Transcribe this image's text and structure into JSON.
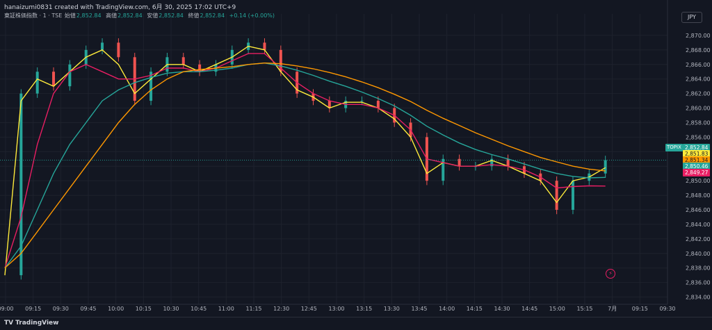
{
  "header": {
    "credit": "hanaizumi0831 created with TradingView.com, 6月 30, 2025 17:02 UTC+9",
    "symbol": "東証株価指数 · 1 · TSE",
    "open_label": "始値",
    "open": "2,852.84",
    "high_label": "高値",
    "high": "2,852.84",
    "low_label": "安値",
    "low": "2,852.84",
    "close_label": "終値",
    "close": "2,852.84",
    "change": "+0.14 (+0.00%)"
  },
  "currency": "JPY",
  "footer": {
    "brand": "TradingView",
    "brand_icon": "tv-logo-icon"
  },
  "colors": {
    "background": "#131722",
    "up": "#26a69a",
    "down": "#ef5350",
    "ma_fast": "#ffeb3b",
    "ma_mid": "#e91e63",
    "ma_slow": "#26a69a",
    "ma_slowest": "#ff9800"
  },
  "chart_data": {
    "type": "line",
    "candles_shown": true,
    "x_labels": [
      "09:00",
      "09:15",
      "09:30",
      "09:45",
      "10:00",
      "10:15",
      "10:30",
      "10:45",
      "11:00",
      "11:15",
      "12:30",
      "12:45",
      "13:00",
      "13:15",
      "13:30",
      "13:45",
      "14:00",
      "14:15",
      "14:30",
      "14:45",
      "15:00",
      "15:15",
      "7月",
      "09:15",
      "09:30"
    ],
    "y_ticks": [
      2834,
      2836,
      2838,
      2840,
      2842,
      2844,
      2846,
      2848,
      2850,
      2852,
      2854,
      2856,
      2858,
      2860,
      2862,
      2864,
      2866,
      2868,
      2870
    ],
    "y_tick_labels": [
      "2,834.00",
      "2,836.00",
      "2,838.00",
      "2,840.00",
      "2,842.00",
      "2,844.00",
      "2,846.00",
      "2,848.00",
      "2,850.00",
      "2,852.00",
      "2,854.00",
      "2,856.00",
      "2,858.00",
      "2,860.00",
      "2,862.00",
      "2,864.00",
      "2,866.00",
      "2,868.00",
      "2,870.00"
    ],
    "ylim": [
      2833,
      2872
    ],
    "grid": true,
    "price_line": 2852.84,
    "series": [
      {
        "color": "#d1d4dc",
        "values": [
          2837,
          2862,
          2865,
          2863,
          2866,
          2868,
          2869,
          2867,
          2861,
          2865,
          2867,
          2866,
          2865,
          2866,
          2868,
          2869,
          2868,
          2865,
          2862,
          2861,
          2860,
          2861,
          2861,
          2860,
          2858,
          2856,
          2850,
          2853,
          2852,
          2852,
          2853,
          2852,
          2851,
          2850,
          2846,
          2850,
          2851,
          2852.84
        ]
      },
      {
        "color": "#ffeb3b",
        "values": [
          2837,
          2861,
          2864,
          2863,
          2865,
          2867,
          2868,
          2866,
          2862,
          2864,
          2866,
          2866,
          2865,
          2866,
          2867,
          2868.5,
          2868,
          2865,
          2862.5,
          2861.5,
          2860,
          2860.8,
          2860.8,
          2860,
          2858.5,
          2856,
          2851,
          2852.5,
          2852,
          2852,
          2852.8,
          2852,
          2851,
          2850,
          2847,
          2850,
          2850.5,
          2851.8
        ]
      },
      {
        "color": "#e91e63",
        "values": [
          2838,
          2845,
          2855,
          2862,
          2865,
          2866,
          2865,
          2864,
          2864,
          2864.5,
          2865.5,
          2865.5,
          2865,
          2865.5,
          2866.5,
          2867.5,
          2867.5,
          2865.5,
          2863.5,
          2862,
          2861,
          2860.5,
          2860.5,
          2860,
          2859,
          2857,
          2853,
          2852.5,
          2852,
          2852,
          2852.2,
          2852,
          2851.5,
          2850.5,
          2849,
          2849.2,
          2849.3,
          2849.27
        ]
      },
      {
        "color": "#26a69a",
        "values": [
          2838,
          2841,
          2846,
          2851,
          2855,
          2858,
          2861,
          2862.5,
          2863.5,
          2864.2,
          2864.8,
          2865,
          2865,
          2865.2,
          2865.5,
          2866,
          2866.2,
          2865.8,
          2865.2,
          2864.5,
          2863.7,
          2863,
          2862.2,
          2861.3,
          2860.3,
          2859,
          2857.5,
          2856.3,
          2855.2,
          2854.3,
          2853.6,
          2853,
          2852.3,
          2851.6,
          2851,
          2850.6,
          2850.4,
          2850.46
        ]
      },
      {
        "color": "#ff9800",
        "values": [
          2838,
          2840,
          2843,
          2846,
          2849,
          2852,
          2855,
          2858,
          2860.5,
          2862.5,
          2864,
          2865,
          2865.3,
          2865.5,
          2865.7,
          2866,
          2866.2,
          2866.1,
          2865.8,
          2865.4,
          2864.9,
          2864.3,
          2863.6,
          2862.8,
          2861.9,
          2860.9,
          2859.7,
          2858.6,
          2857.6,
          2856.6,
          2855.7,
          2854.8,
          2854,
          2853.2,
          2852.6,
          2852,
          2851.6,
          2851.34
        ]
      }
    ],
    "price_tags": [
      {
        "label": "TOPIX",
        "value": "2,852.84",
        "color": "#26a69a"
      },
      {
        "label": "",
        "value": "2,851.83",
        "color": "#ffeb3b"
      },
      {
        "label": "",
        "value": "2,851.34",
        "color": "#ff9800"
      },
      {
        "label": "",
        "value": "2,850.46",
        "color": "#26a69a"
      },
      {
        "label": "",
        "value": "2,849.27",
        "color": "#e91e63"
      }
    ]
  }
}
